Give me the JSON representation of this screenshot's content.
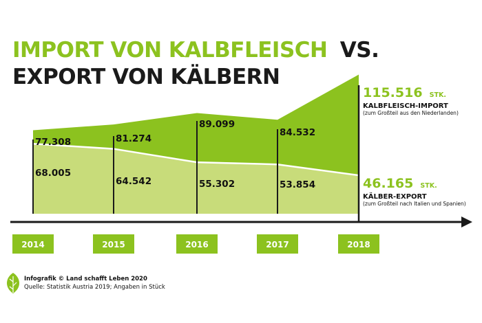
{
  "title": {
    "line1_part1": "IMPORT VON KALBFLEISCH",
    "line1_part2": "VS.",
    "line2": "EXPORT VON KÄLBERN"
  },
  "colors": {
    "accent_green": "#8cc21f",
    "light_green": "#c8dc7a",
    "import_area": "#8cc21f",
    "export_area": "#c8dc7a",
    "text": "#1a1a1a"
  },
  "chart_data": {
    "type": "area",
    "categories": [
      "2014",
      "2015",
      "2016",
      "2017",
      "2018"
    ],
    "series": [
      {
        "name": "KALBFLEISCH-IMPORT",
        "values": [
          77308,
          81274,
          89099,
          84532,
          115516
        ],
        "labels": [
          "77.308",
          "81.274",
          "89.099",
          "84.532",
          "115.516"
        ]
      },
      {
        "name": "KÄLBER-EXPORT",
        "values": [
          68005,
          64542,
          55302,
          53854,
          46165
        ],
        "labels": [
          "68.005",
          "64.542",
          "55.302",
          "53.854",
          "46.165"
        ]
      }
    ],
    "grid": false,
    "legend": "right"
  },
  "end_labels": {
    "import": {
      "value": "115.516",
      "unit": "STK.",
      "label": "KALBFLEISCH-IMPORT",
      "sub": "(zum Großteil aus den Niederlanden)"
    },
    "export": {
      "value": "46.165",
      "unit": "STK.",
      "label": "KÄLBER-EXPORT",
      "sub": "(zum Großteil nach Italien und Spanien)"
    }
  },
  "footer": {
    "credit": "Infografik © Land schafft Leben 2020",
    "source": "Quelle: Statistik Austria 2019; Angaben in Stück",
    "logo_icon": "leaf-icon"
  }
}
